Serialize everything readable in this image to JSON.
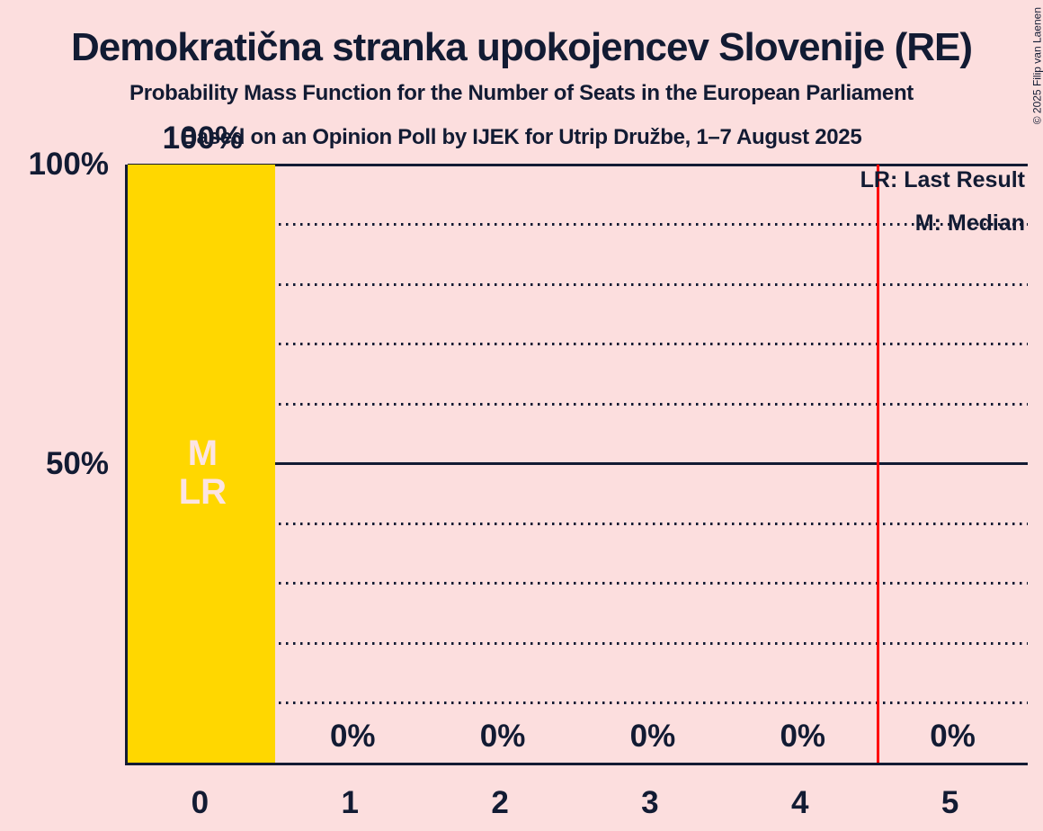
{
  "title": "Demokratična stranka upokojencev Slovenije (RE)",
  "subtitle": "Probability Mass Function for the Number of Seats in the European Parliament",
  "poll_info": "Based on an Opinion Poll by IJEK for Utrip Družbe, 1–7 August 2025",
  "copyright": "© 2025 Filip van Laenen",
  "legend": {
    "last_result": "LR: Last Result",
    "median": "M: Median"
  },
  "colors": {
    "background": "#FCDEDE",
    "ink": "#121B33",
    "bar": "#FFD700",
    "red_line": "#FF0000",
    "in_bar_text": "#FCE4E4"
  },
  "chart_data": {
    "type": "bar",
    "title": "Demokratična stranka upokojencev Slovenije (RE)",
    "subtitle": "Probability Mass Function for the Number of Seats in the European Parliament",
    "categories": [
      "0",
      "1",
      "2",
      "3",
      "4",
      "5"
    ],
    "values": [
      100,
      0,
      0,
      0,
      0,
      0
    ],
    "value_labels": [
      "100%",
      "0%",
      "0%",
      "0%",
      "0%",
      "0%"
    ],
    "ylim": [
      0,
      100
    ],
    "y_ticks": [
      {
        "value": 100,
        "label": "100%"
      },
      {
        "value": 50,
        "label": "50%"
      }
    ],
    "gridlines": {
      "solid_at": [
        100,
        50
      ],
      "dotted_at": [
        90,
        80,
        70,
        60,
        40,
        30,
        20,
        10
      ]
    },
    "legend_position": "top-right",
    "red_line_x": 4.5,
    "median_bar_index": 0,
    "last_result_bar_index": 0,
    "in_bar_labels": [
      "M",
      "LR"
    ]
  }
}
